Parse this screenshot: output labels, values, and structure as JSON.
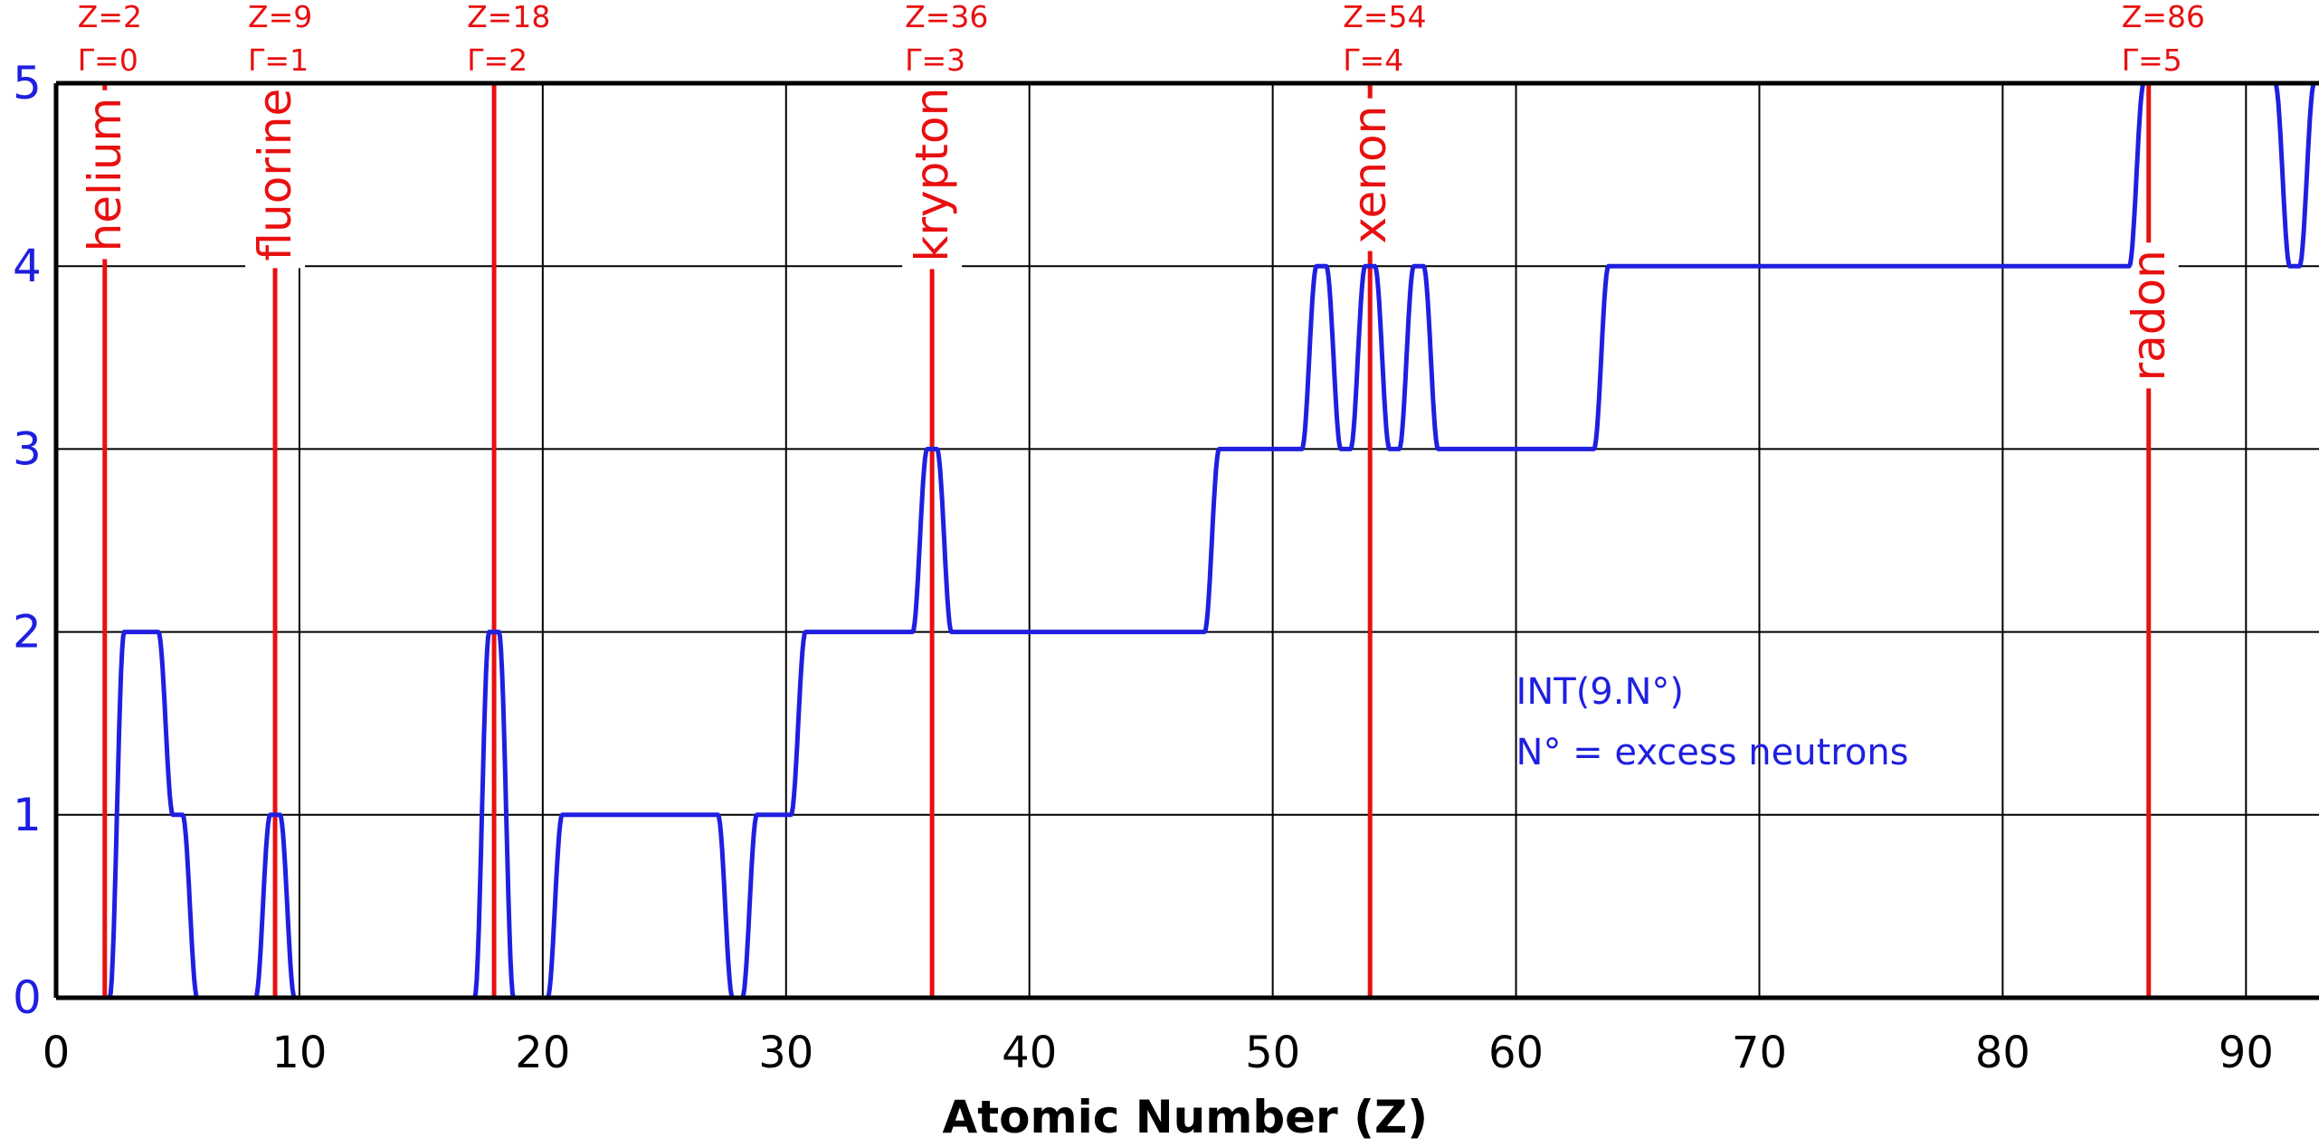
{
  "chart_data": {
    "type": "line",
    "xlabel": "Atomic Number (Z)",
    "ylabel": "",
    "xlim": [
      0,
      93
    ],
    "ylim": [
      0,
      5
    ],
    "x_ticks": [
      "0",
      "10",
      "20",
      "30",
      "40",
      "50",
      "60",
      "70",
      "80",
      "90"
    ],
    "y_ticks": [
      "0",
      "1",
      "2",
      "3",
      "4",
      "5"
    ],
    "grid": true,
    "colors": {
      "series": "#1f1fe0",
      "markers": "#e81010",
      "grid": "#000000"
    },
    "annotation": [
      "INT(9.N°)",
      "N° = excess neutrons"
    ],
    "series": [
      {
        "x": [
          1,
          2,
          3,
          4,
          5,
          6,
          7,
          8,
          9,
          10,
          11,
          12,
          13,
          14,
          15,
          16,
          17,
          18,
          19,
          20,
          21,
          22,
          23,
          24,
          25,
          26,
          27,
          28,
          29,
          30,
          31,
          32,
          33,
          34,
          35,
          36,
          37,
          38,
          39,
          40,
          41,
          42,
          43,
          44,
          45,
          46,
          47,
          48,
          49,
          50,
          51,
          52,
          53,
          54,
          55,
          56,
          57,
          58,
          59,
          60,
          61,
          62,
          63,
          64,
          65,
          66,
          67,
          68,
          69,
          70,
          71,
          72,
          73,
          74,
          75,
          76,
          77,
          78,
          79,
          80,
          81,
          82,
          83,
          84,
          85,
          86,
          87,
          88,
          89,
          90,
          91,
          92,
          93
        ],
        "y": [
          0,
          0,
          2,
          2,
          1,
          0,
          0,
          0,
          1,
          0,
          0,
          0,
          0,
          0,
          0,
          0,
          0,
          2,
          0,
          0,
          1,
          1,
          1,
          1,
          1,
          1,
          1,
          0,
          1,
          1,
          2,
          2,
          2,
          2,
          2,
          3,
          2,
          2,
          2,
          2,
          2,
          2,
          2,
          2,
          2,
          2,
          2,
          3,
          3,
          3,
          3,
          4,
          3,
          4,
          3,
          4,
          3,
          3,
          3,
          3,
          3,
          3,
          3,
          4,
          4,
          4,
          4,
          4,
          4,
          4,
          4,
          4,
          4,
          4,
          4,
          4,
          4,
          4,
          4,
          4,
          4,
          4,
          4,
          4,
          4,
          5,
          5,
          5,
          5,
          5,
          5,
          4,
          5
        ]
      }
    ],
    "markers": [
      {
        "z": 2,
        "name": "helium",
        "z_label": "Z=2",
        "gamma_label": "Γ=0",
        "name_pos": "top"
      },
      {
        "z": 9,
        "name": "fluorine",
        "z_label": "Z=9",
        "gamma_label": "Γ=1",
        "name_pos": "top"
      },
      {
        "z": 18,
        "name": "",
        "z_label": "Z=18",
        "gamma_label": "Γ=2",
        "name_pos": "top"
      },
      {
        "z": 36,
        "name": "krypton",
        "z_label": "Z=36",
        "gamma_label": "Γ=3",
        "name_pos": "top"
      },
      {
        "z": 54,
        "name": "xenon",
        "z_label": "Z=54",
        "gamma_label": "Γ=4",
        "name_pos": "top"
      },
      {
        "z": 86,
        "name": "radon",
        "z_label": "Z=86",
        "gamma_label": "Γ=5",
        "name_pos": "mid"
      }
    ]
  }
}
